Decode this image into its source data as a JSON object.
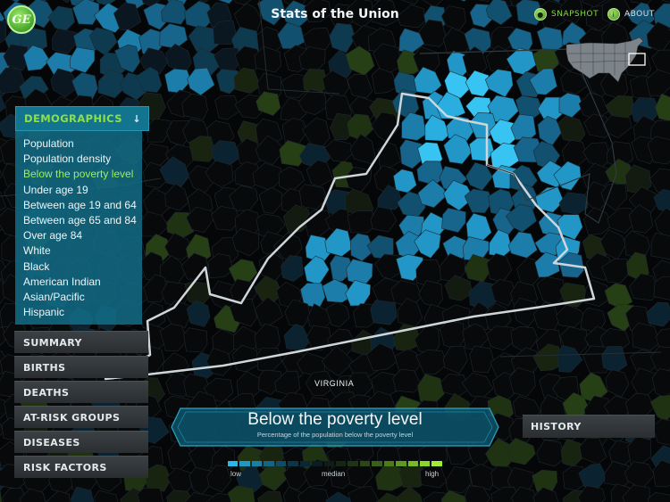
{
  "app": {
    "title": "Stats of the Union",
    "logo_text": "GE"
  },
  "header": {
    "snapshot_label": "SNAPSHOT",
    "about_label": "ABOUT"
  },
  "sidebar": {
    "section_label": "DEMOGRAPHICS",
    "items": [
      {
        "label": "Population"
      },
      {
        "label": "Population density"
      },
      {
        "label": "Below the poverty level",
        "selected": true
      },
      {
        "label": "Under age 19"
      },
      {
        "label": "Between age 19 and 64"
      },
      {
        "label": "Between age 65 and 84"
      },
      {
        "label": "Over age 84"
      },
      {
        "label": "White"
      },
      {
        "label": "Black"
      },
      {
        "label": "American Indian"
      },
      {
        "label": "Asian/Pacific"
      },
      {
        "label": "Hispanic"
      }
    ],
    "menu": [
      "SUMMARY",
      "BIRTHS",
      "DEATHS",
      "AT-RISK GROUPS",
      "DISEASES",
      "RISK FACTORS"
    ]
  },
  "map": {
    "state_label": "VIRGINIA"
  },
  "banner": {
    "title": "Below the poverty level",
    "subtitle": "Percentage of the population below the poverty level"
  },
  "history_label": "HISTORY",
  "legend": {
    "low_label": "low",
    "median_label": "median",
    "high_label": "high",
    "colors": [
      "#29b6e8",
      "#2099c8",
      "#1a7ea8",
      "#156486",
      "#104c66",
      "#0c3648",
      "#0a2734",
      "#0b1d22",
      "#101c16",
      "#172614",
      "#203414",
      "#2c4716",
      "#3a5f18",
      "#4c7b1c",
      "#5f9a20",
      "#76bb26",
      "#8dd62c",
      "#a3ec35"
    ]
  },
  "colors": {
    "accent_green": "#8ad24d",
    "panel_blue": "#13748f",
    "high_blue": "#29b6e8"
  }
}
